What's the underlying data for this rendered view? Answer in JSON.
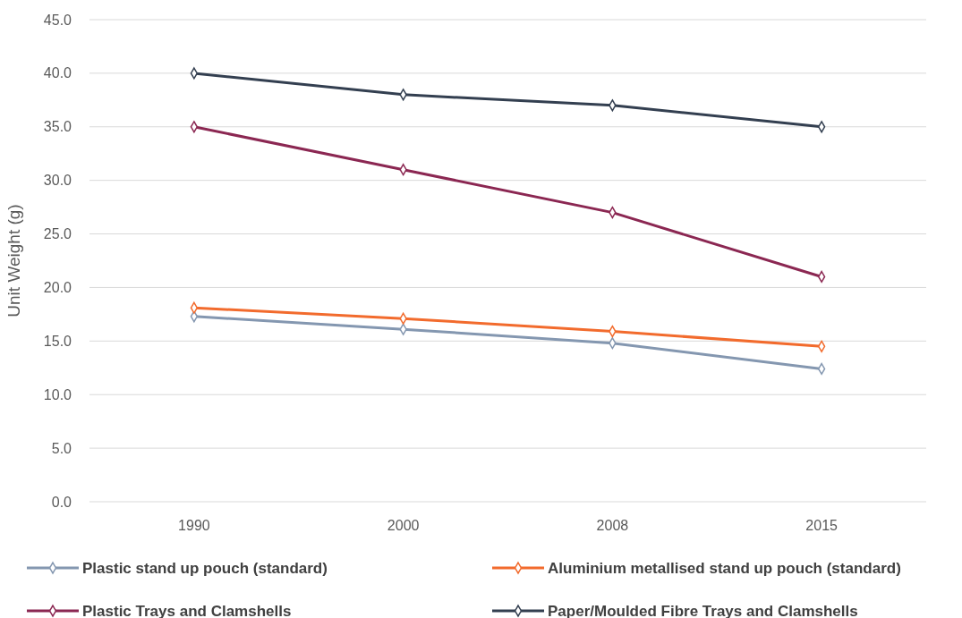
{
  "chart_data": {
    "type": "line",
    "ylabel": "Unit Weight (g)",
    "categories": [
      "1990",
      "2000",
      "2008",
      "2015"
    ],
    "series": [
      {
        "name": "Plastic stand up pouch (standard)",
        "color": "#8497b0",
        "values": [
          17.3,
          16.1,
          14.8,
          12.4
        ]
      },
      {
        "name": "Aluminium metallised stand up pouch (standard)",
        "color": "#f26b2d",
        "values": [
          18.1,
          17.1,
          15.9,
          14.5
        ]
      },
      {
        "name": "Plastic Trays and Clamshells",
        "color": "#8b2752",
        "values": [
          35,
          31,
          27,
          21
        ]
      },
      {
        "name": "Paper/Moulded Fibre Trays and Clamshells",
        "color": "#333f50",
        "values": [
          40,
          38,
          37,
          35
        ]
      }
    ],
    "ylim": [
      0,
      45
    ],
    "yticks": [
      {
        "value": 0,
        "label": "0.0"
      },
      {
        "value": 5,
        "label": "5.0"
      },
      {
        "value": 10,
        "label": "10.0"
      },
      {
        "value": 15,
        "label": "15.0"
      },
      {
        "value": 20,
        "label": "20.0"
      },
      {
        "value": 25,
        "label": "25.0"
      },
      {
        "value": 30,
        "label": "30.0"
      },
      {
        "value": 35,
        "label": "35.0"
      },
      {
        "value": 40,
        "label": "40.0"
      },
      {
        "value": 45,
        "label": "45.0"
      }
    ],
    "grid": "y",
    "legend": "bottom",
    "marker": "diamond",
    "line_style": "solid"
  }
}
